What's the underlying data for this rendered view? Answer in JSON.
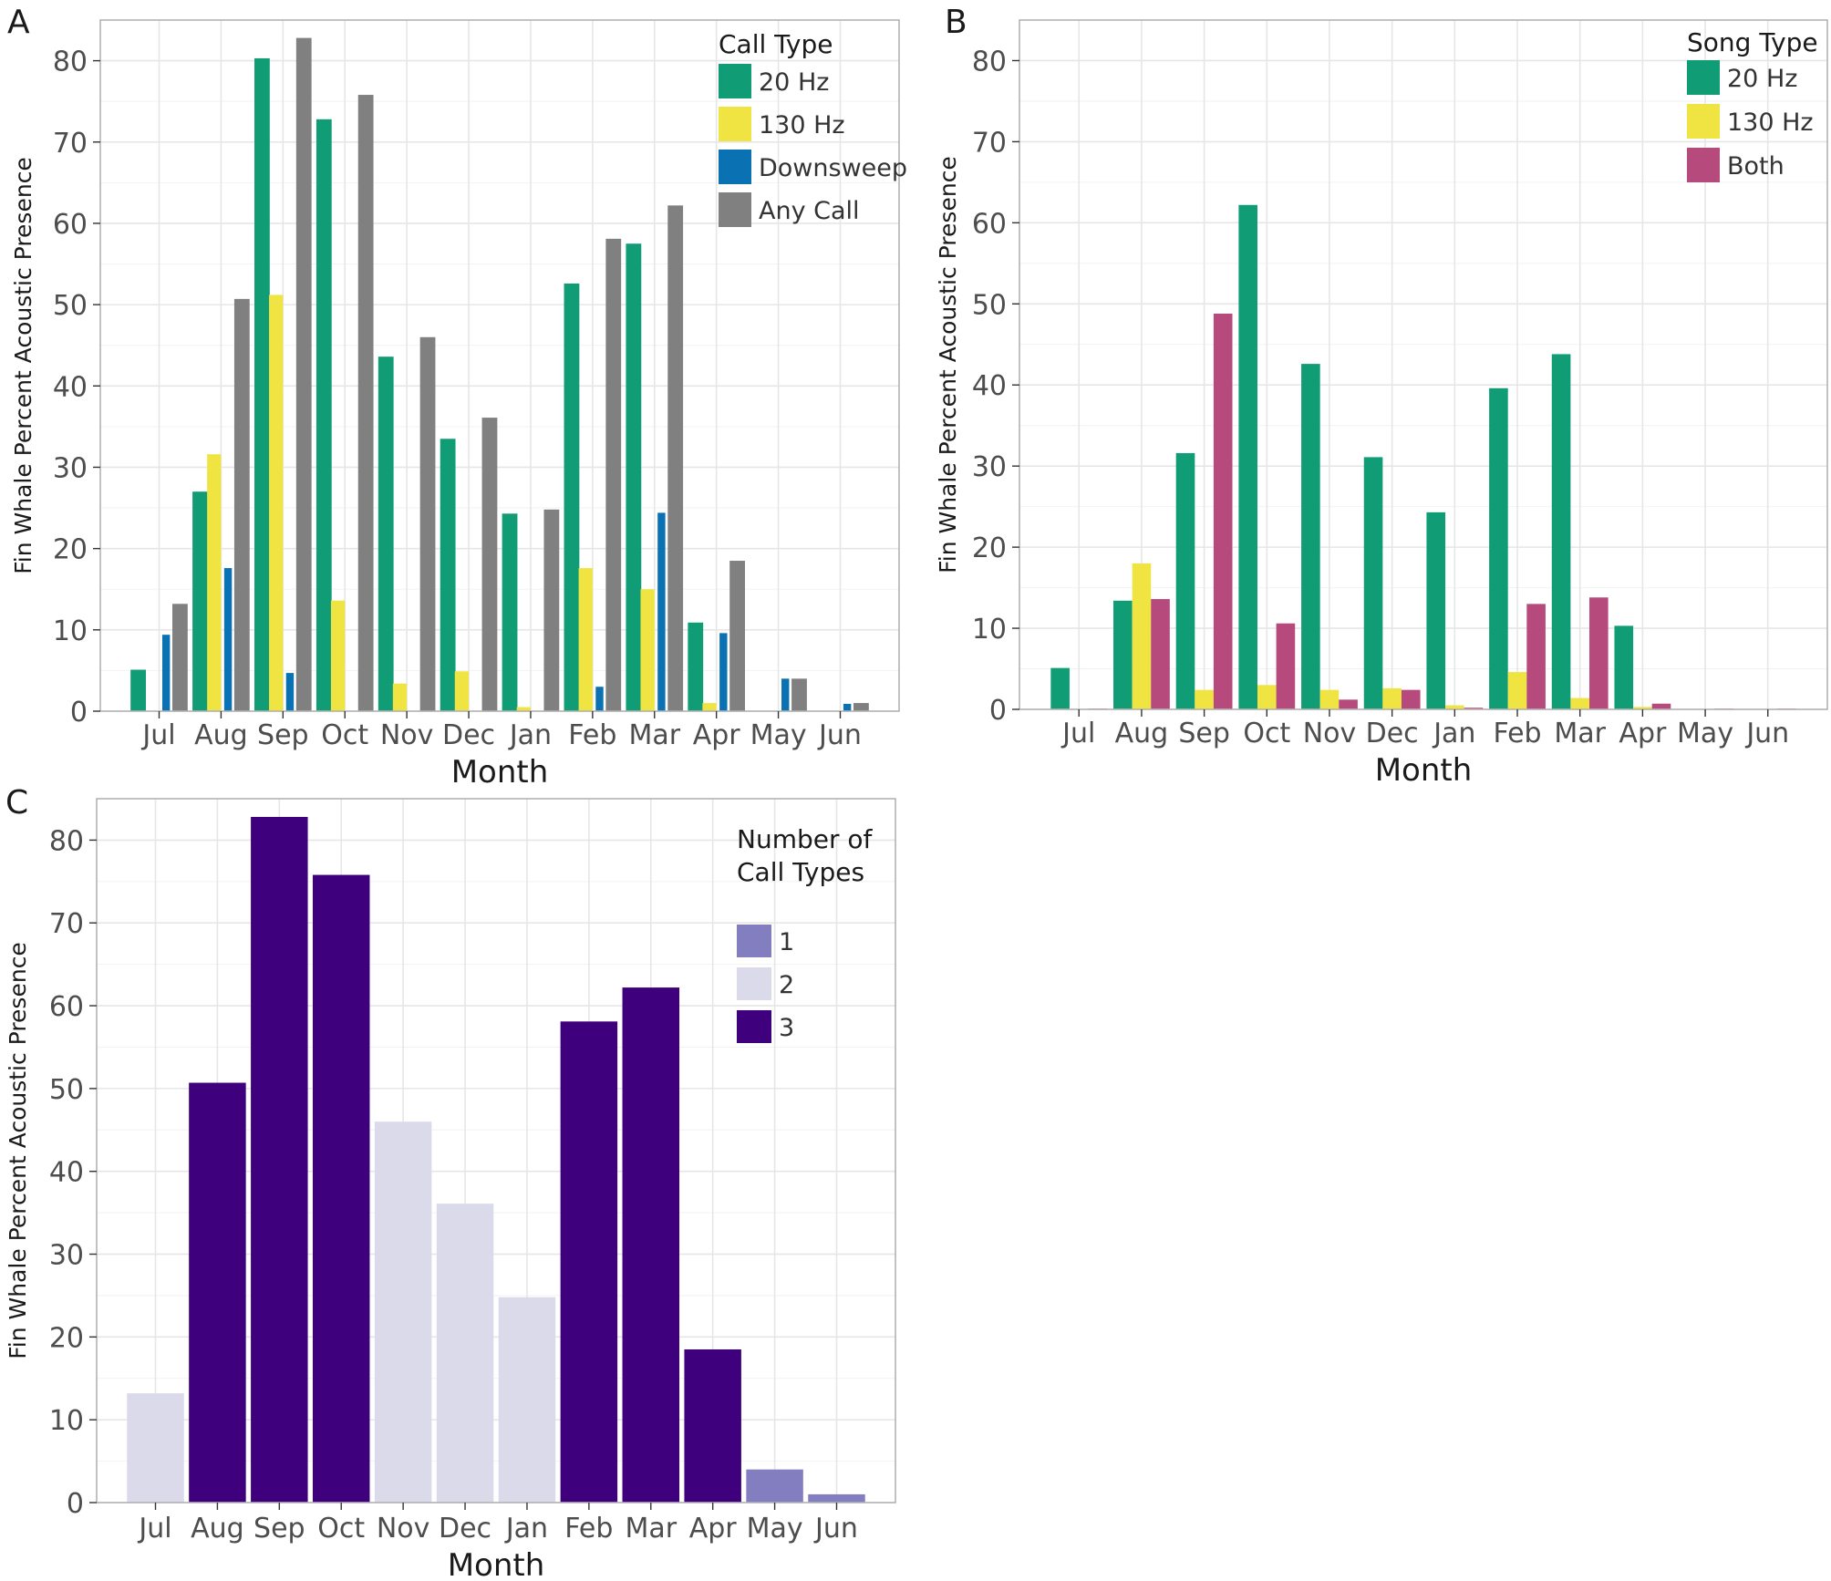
{
  "chart_data": [
    {
      "id": "A",
      "type": "bar",
      "panel_label": "A",
      "xlabel": "Month",
      "ylabel": "Fin Whale Percent Acoustic Presence",
      "ylim": [
        0,
        85
      ],
      "yticks": [
        0,
        10,
        20,
        30,
        40,
        50,
        60,
        70,
        80
      ],
      "categories": [
        "Jul",
        "Aug",
        "Sep",
        "Oct",
        "Nov",
        "Dec",
        "Jan",
        "Feb",
        "Mar",
        "Apr",
        "May",
        "Jun"
      ],
      "legend_title": "Call Type",
      "legend_position": "top-right",
      "bar_mode": "overlapped-dodge",
      "series": [
        {
          "name": "20 Hz",
          "color": "#109C74",
          "values": [
            5.1,
            27.0,
            80.3,
            72.8,
            43.6,
            33.5,
            24.3,
            52.6,
            57.5,
            10.9,
            0,
            0
          ]
        },
        {
          "name": "130 Hz",
          "color": "#F0E442",
          "values": [
            0,
            31.6,
            51.2,
            13.6,
            3.4,
            4.9,
            0.5,
            17.6,
            15.0,
            1.0,
            0,
            0
          ]
        },
        {
          "name": "Downsweep",
          "color": "#0A72B2",
          "values": [
            9.4,
            17.6,
            4.7,
            0,
            0,
            0,
            0,
            3.0,
            24.4,
            9.6,
            4.0,
            0.9
          ]
        },
        {
          "name": "Any Call",
          "color": "#808080",
          "values": [
            13.2,
            50.7,
            82.8,
            75.8,
            46.0,
            36.1,
            24.8,
            58.1,
            62.2,
            18.5,
            4.0,
            1.0
          ]
        }
      ]
    },
    {
      "id": "B",
      "type": "bar",
      "panel_label": "B",
      "xlabel": "Month",
      "ylabel": "Fin Whale Percent Acoustic Presence",
      "ylim": [
        0,
        85
      ],
      "yticks": [
        0,
        10,
        20,
        30,
        40,
        50,
        60,
        70,
        80
      ],
      "categories": [
        "Jul",
        "Aug",
        "Sep",
        "Oct",
        "Nov",
        "Dec",
        "Jan",
        "Feb",
        "Mar",
        "Apr",
        "May",
        "Jun"
      ],
      "legend_title": "Song Type",
      "legend_position": "top-right",
      "bar_mode": "overlapped-dodge",
      "series": [
        {
          "name": "20 Hz",
          "color": "#109C74",
          "values": [
            5.1,
            13.4,
            31.6,
            62.2,
            42.6,
            31.1,
            24.3,
            39.6,
            43.8,
            10.3,
            0,
            0
          ]
        },
        {
          "name": "130 Hz",
          "color": "#F0E442",
          "values": [
            0,
            18.0,
            2.4,
            3.0,
            2.4,
            2.6,
            0.5,
            4.6,
            1.4,
            0.3,
            0,
            0
          ]
        },
        {
          "name": "Both",
          "color": "#B64A7C",
          "values": [
            0.1,
            13.6,
            48.8,
            10.6,
            1.2,
            2.4,
            0.2,
            13.0,
            13.8,
            0.7,
            0.1,
            0.1
          ]
        }
      ]
    },
    {
      "id": "C",
      "type": "bar",
      "panel_label": "C",
      "xlabel": "Month",
      "ylabel": "Fin Whale Percent Acoustic Presence",
      "ylim": [
        0,
        85
      ],
      "yticks": [
        0,
        10,
        20,
        30,
        40,
        50,
        60,
        70,
        80
      ],
      "categories": [
        "Jul",
        "Aug",
        "Sep",
        "Oct",
        "Nov",
        "Dec",
        "Jan",
        "Feb",
        "Mar",
        "Apr",
        "May",
        "Jun"
      ],
      "legend_title": [
        "Number of",
        "Call Types"
      ],
      "legend_position": "top-right",
      "bar_mode": "single",
      "legend_items": [
        {
          "name": "1",
          "color": "#837EC0"
        },
        {
          "name": "2",
          "color": "#DADAEB"
        },
        {
          "name": "3",
          "color": "#3F007D"
        }
      ],
      "values": [
        13.2,
        50.7,
        82.8,
        75.8,
        46.0,
        36.1,
        24.8,
        58.1,
        62.2,
        18.5,
        4.0,
        1.0
      ],
      "groups": [
        "2",
        "3",
        "3",
        "3",
        "2",
        "2",
        "2",
        "3",
        "3",
        "3",
        "1",
        "1"
      ]
    }
  ]
}
